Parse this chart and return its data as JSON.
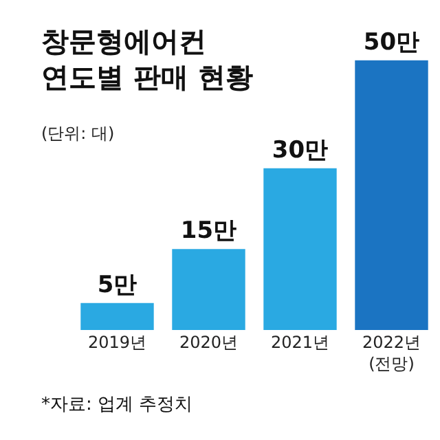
{
  "chart_data": {
    "type": "bar",
    "title": "창문형에어컨\n연도별 판매 현황",
    "subtitle": "(단위: 대)",
    "categories": [
      "2019년",
      "2020년",
      "2021년",
      "2022년\n(전망)"
    ],
    "values": [
      5,
      15,
      30,
      50
    ],
    "value_labels": [
      "5만",
      "15만",
      "30만",
      "50만"
    ],
    "colors": [
      "#2aa9e2",
      "#2aa9e2",
      "#2aa9e2",
      "#1b74c2"
    ],
    "annotations": [
      "*자료: 업계 추정치"
    ]
  }
}
